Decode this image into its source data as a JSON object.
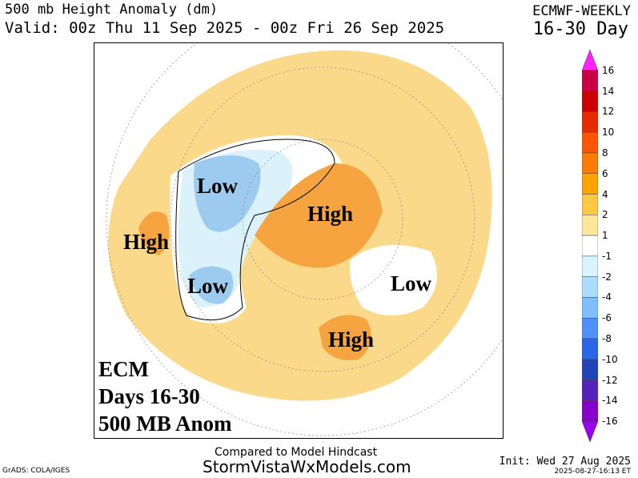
{
  "header": {
    "title": "500 mb Height Anomaly (dm)",
    "valid": "Valid: 00z Thu 11 Sep 2025 - 00z Fri 26 Sep 2025",
    "model": "ECMWF-WEEKLY",
    "range": "16-30 Day"
  },
  "map": {
    "labels": [
      "Low",
      "High",
      "High",
      "Low",
      "Low",
      "High"
    ],
    "annotation": [
      "ECM",
      "Days 16-30",
      "500 MB Anom"
    ]
  },
  "colorbar": {
    "ticks": [
      "16",
      "14",
      "12",
      "10",
      "8",
      "6",
      "4",
      "2",
      "1",
      "-1",
      "-2",
      "-4",
      "-6",
      "-8",
      "-10",
      "-12",
      "-14",
      "-16"
    ],
    "colors": [
      "#ff22ff",
      "#cc0044",
      "#cc0000",
      "#e82a00",
      "#ff5500",
      "#ff7b00",
      "#ffa200",
      "#ffc844",
      "#ffe699",
      "#ffffff",
      "#d8f4ff",
      "#aaddff",
      "#80bfff",
      "#4f8fff",
      "#2a66e8",
      "#2244bb",
      "#5522bb",
      "#8800cc",
      "#9900ee"
    ]
  },
  "footer": {
    "compared": "Compared to Model Hindcast",
    "site": "StormVistaWxModels.com",
    "grads": "GrADS: COLA/IGES",
    "init": "Init: Wed 27 Aug 2025",
    "stamp": "2025-08-27-16:13 ET"
  }
}
